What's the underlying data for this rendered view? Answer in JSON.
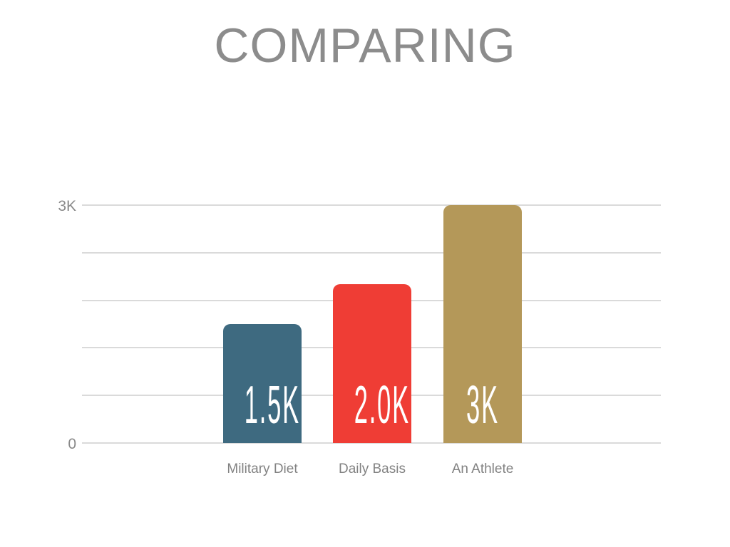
{
  "slide": {
    "title": "COMPARING"
  },
  "chart_data": {
    "type": "bar",
    "title": "COMPARING",
    "categories": [
      "Military Diet",
      "Daily Basis",
      "An Athlete"
    ],
    "values": [
      1500,
      2000,
      3000
    ],
    "value_labels": [
      "1.5K",
      "2.0K",
      "3K"
    ],
    "bar_colors": [
      "#3e6a80",
      "#ef3d35",
      "#b49859"
    ],
    "xlabel": "",
    "ylabel": "",
    "ylim": [
      0,
      3000
    ],
    "yticks": [
      {
        "value": 3000,
        "label": "3K"
      },
      {
        "value": 0,
        "label": "0"
      }
    ],
    "gridlines": {
      "count": 6,
      "on": true,
      "color": "#dadada"
    },
    "legend": "none",
    "colors": {
      "title_text": "#8c8c8c",
      "axis_text": "#8a8a8a",
      "category_text": "#828282",
      "bar_value_text": "#ffffff",
      "background": "#ffffff"
    }
  }
}
